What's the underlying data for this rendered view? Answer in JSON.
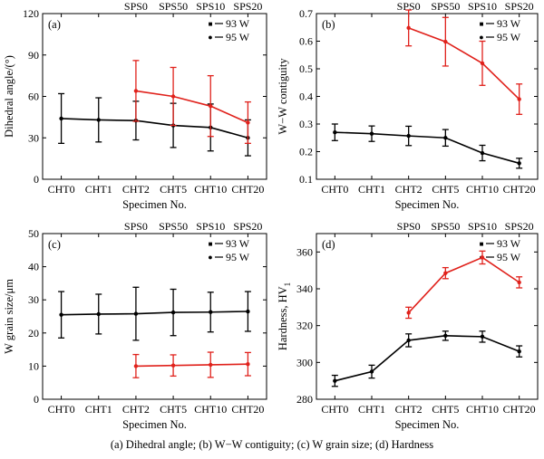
{
  "caption": "(a) Dihedral angle; (b)  W−W contiguity; (c) W grain size; (d) Hardness",
  "colors": {
    "series_93": "#e0211b",
    "series_95": "#000000"
  },
  "chart_data": [
    {
      "type": "line",
      "panel_label": "(a)",
      "ylabel": "Dihedral angle/(°)",
      "xlabel": "Specimen No.",
      "categories": [
        "CHT0",
        "CHT1",
        "CHT2",
        "CHT5",
        "CHT10",
        "CHT20"
      ],
      "top_categories": [
        "SPS0",
        "SPS50",
        "SPS10",
        "SPS20"
      ],
      "ylim": [
        0,
        120
      ],
      "yticks": [
        0,
        30,
        60,
        90,
        120
      ],
      "ytick_labels": [
        "0",
        "30",
        "60",
        "90",
        "120"
      ],
      "legend": [
        "93 W",
        "95 W"
      ],
      "series": [
        {
          "name": "95 W",
          "x": [
            0,
            1,
            2,
            3,
            4,
            5
          ],
          "values": [
            44,
            43,
            42.5,
            39,
            37.5,
            30
          ],
          "err": [
            18,
            16,
            14,
            16,
            17,
            13
          ],
          "color": "#000000"
        },
        {
          "name": "93 W",
          "x": [
            2,
            3,
            4,
            5
          ],
          "values": [
            64,
            60,
            53,
            41
          ],
          "err": [
            22,
            21,
            22,
            15
          ],
          "color": "#e0211b"
        }
      ]
    },
    {
      "type": "line",
      "panel_label": "(b)",
      "ylabel": "W−W contiguity",
      "xlabel": "Specimen No.",
      "categories": [
        "CHT0",
        "CHT1",
        "CHT2",
        "CHT5",
        "CHT10",
        "CHT20"
      ],
      "top_categories": [
        "SPS0",
        "SPS50",
        "SPS10",
        "SPS20"
      ],
      "ylim": [
        0.1,
        0.7
      ],
      "yticks": [
        0.1,
        0.2,
        0.3,
        0.4,
        0.5,
        0.6,
        0.7
      ],
      "ytick_labels": [
        "0.1",
        "0.2",
        "0.3",
        "0.4",
        "0.5",
        "0.6",
        "0.7"
      ],
      "legend": [
        "93 W",
        "95 W"
      ],
      "series": [
        {
          "name": "95 W",
          "x": [
            0,
            1,
            2,
            3,
            4,
            5
          ],
          "values": [
            0.27,
            0.265,
            0.257,
            0.25,
            0.195,
            0.158
          ],
          "err": [
            0.03,
            0.028,
            0.035,
            0.03,
            0.028,
            0.018
          ],
          "color": "#000000"
        },
        {
          "name": "93 W",
          "x": [
            2,
            3,
            4,
            5
          ],
          "values": [
            0.648,
            0.598,
            0.52,
            0.39
          ],
          "err": [
            0.065,
            0.088,
            0.08,
            0.055
          ],
          "color": "#e0211b"
        }
      ]
    },
    {
      "type": "line",
      "panel_label": "(c)",
      "ylabel": "W grain size/μm",
      "xlabel": "Specimen No.",
      "categories": [
        "CHT0",
        "CHT1",
        "CHT2",
        "CHT5",
        "CHT10",
        "CHT20"
      ],
      "top_categories": [
        "SPS0",
        "SPS50",
        "SPS10",
        "SPS20"
      ],
      "ylim": [
        0,
        50
      ],
      "yticks": [
        0,
        10,
        20,
        30,
        40,
        50
      ],
      "ytick_labels": [
        "0",
        "10",
        "20",
        "30",
        "40",
        "50"
      ],
      "legend": [
        "93 W",
        "95 W"
      ],
      "series": [
        {
          "name": "95 W",
          "x": [
            0,
            1,
            2,
            3,
            4,
            5
          ],
          "values": [
            25.5,
            25.7,
            25.8,
            26.2,
            26.3,
            26.5
          ],
          "err": [
            7,
            6,
            8,
            7,
            6,
            6
          ],
          "color": "#000000"
        },
        {
          "name": "93 W",
          "x": [
            2,
            3,
            4,
            5
          ],
          "values": [
            10,
            10.2,
            10.4,
            10.6
          ],
          "err": [
            3.5,
            3.2,
            3.8,
            3.5
          ],
          "color": "#e0211b"
        }
      ]
    },
    {
      "type": "line",
      "panel_label": "(d)",
      "ylabel": "Hardness, HV",
      "ylabel_sub": "1",
      "xlabel": "Specimen No.",
      "categories": [
        "CHT0",
        "CHT1",
        "CHT2",
        "CHT5",
        "CHT10",
        "CHT20"
      ],
      "top_categories": [
        "SPS0",
        "SPS50",
        "SPS10",
        "SPS20"
      ],
      "ylim": [
        280,
        370
      ],
      "yticks": [
        280,
        300,
        320,
        340,
        360
      ],
      "ytick_labels": [
        "280",
        "300",
        "320",
        "340",
        "360"
      ],
      "legend": [
        "93 W",
        "95 W"
      ],
      "series": [
        {
          "name": "95 W",
          "x": [
            0,
            1,
            2,
            3,
            4,
            5
          ],
          "values": [
            290,
            295,
            312,
            314.5,
            314,
            306
          ],
          "err": [
            3,
            3.5,
            3.5,
            2.5,
            3,
            3
          ],
          "color": "#000000"
        },
        {
          "name": "93 W",
          "x": [
            2,
            3,
            4,
            5
          ],
          "values": [
            327,
            348.5,
            357,
            343.5
          ],
          "err": [
            3,
            3,
            3.5,
            3
          ],
          "color": "#e0211b"
        }
      ]
    }
  ]
}
